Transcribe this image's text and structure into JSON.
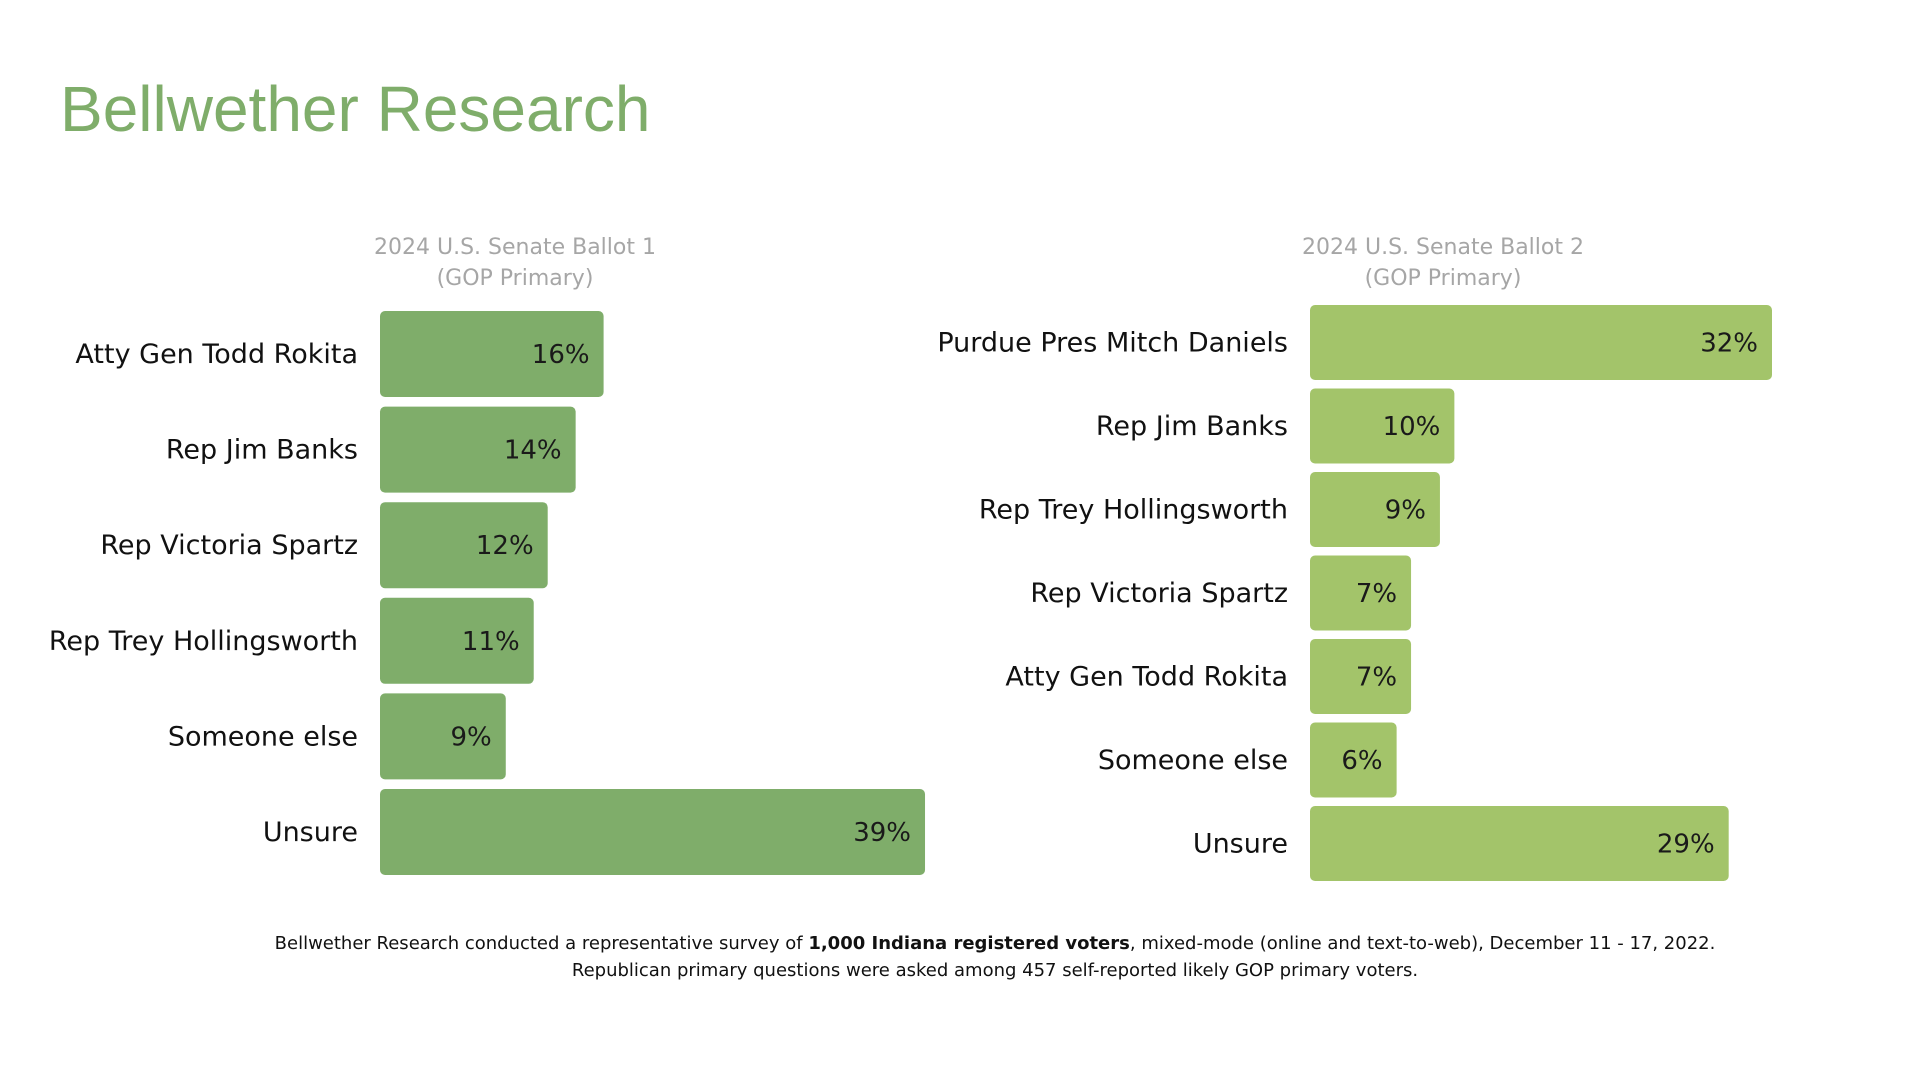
{
  "header": {
    "title": "Bellwether Research"
  },
  "colors": {
    "title": "#7fad6a",
    "chart1_bar": "#7fad6a",
    "chart2_bar": "#a3c46a",
    "subtitle": "#a6a6a6"
  },
  "chart_data": [
    {
      "type": "bar",
      "orientation": "horizontal",
      "title_line1": "2024 U.S. Senate Ballot 1",
      "title_line2": "(GOP Primary)",
      "categories": [
        "Atty Gen Todd Rokita",
        "Rep Jim Banks",
        "Rep Victoria Spartz",
        "Rep Trey Hollingsworth",
        "Someone else",
        "Unsure"
      ],
      "values": [
        16,
        14,
        12,
        11,
        9,
        39
      ],
      "value_labels": [
        "16%",
        "14%",
        "12%",
        "11%",
        "9%",
        "39%"
      ],
      "xlim": [
        0,
        40
      ],
      "unit": "%"
    },
    {
      "type": "bar",
      "orientation": "horizontal",
      "title_line1": "2024 U.S. Senate Ballot 2",
      "title_line2": "(GOP Primary)",
      "categories": [
        "Purdue Pres Mitch Daniels",
        "Rep Jim Banks",
        "Rep Trey Hollingsworth",
        "Rep Victoria Spartz",
        "Atty Gen Todd Rokita",
        "Someone else",
        "Unsure"
      ],
      "values": [
        32,
        10,
        9,
        7,
        7,
        6,
        29
      ],
      "value_labels": [
        "32%",
        "10%",
        "9%",
        "7%",
        "7%",
        "6%",
        "29%"
      ],
      "xlim": [
        0,
        32
      ],
      "unit": "%"
    }
  ],
  "footnote": {
    "line1_pre": "Bellwether Research conducted a representative survey of ",
    "line1_bold": "1,000 Indiana registered voters",
    "line1_post": ", mixed-mode (online and text-to-web), December 11 - 17, 2022.",
    "line2": "Republican primary questions were asked among 457 self-reported likely GOP  primary voters."
  }
}
